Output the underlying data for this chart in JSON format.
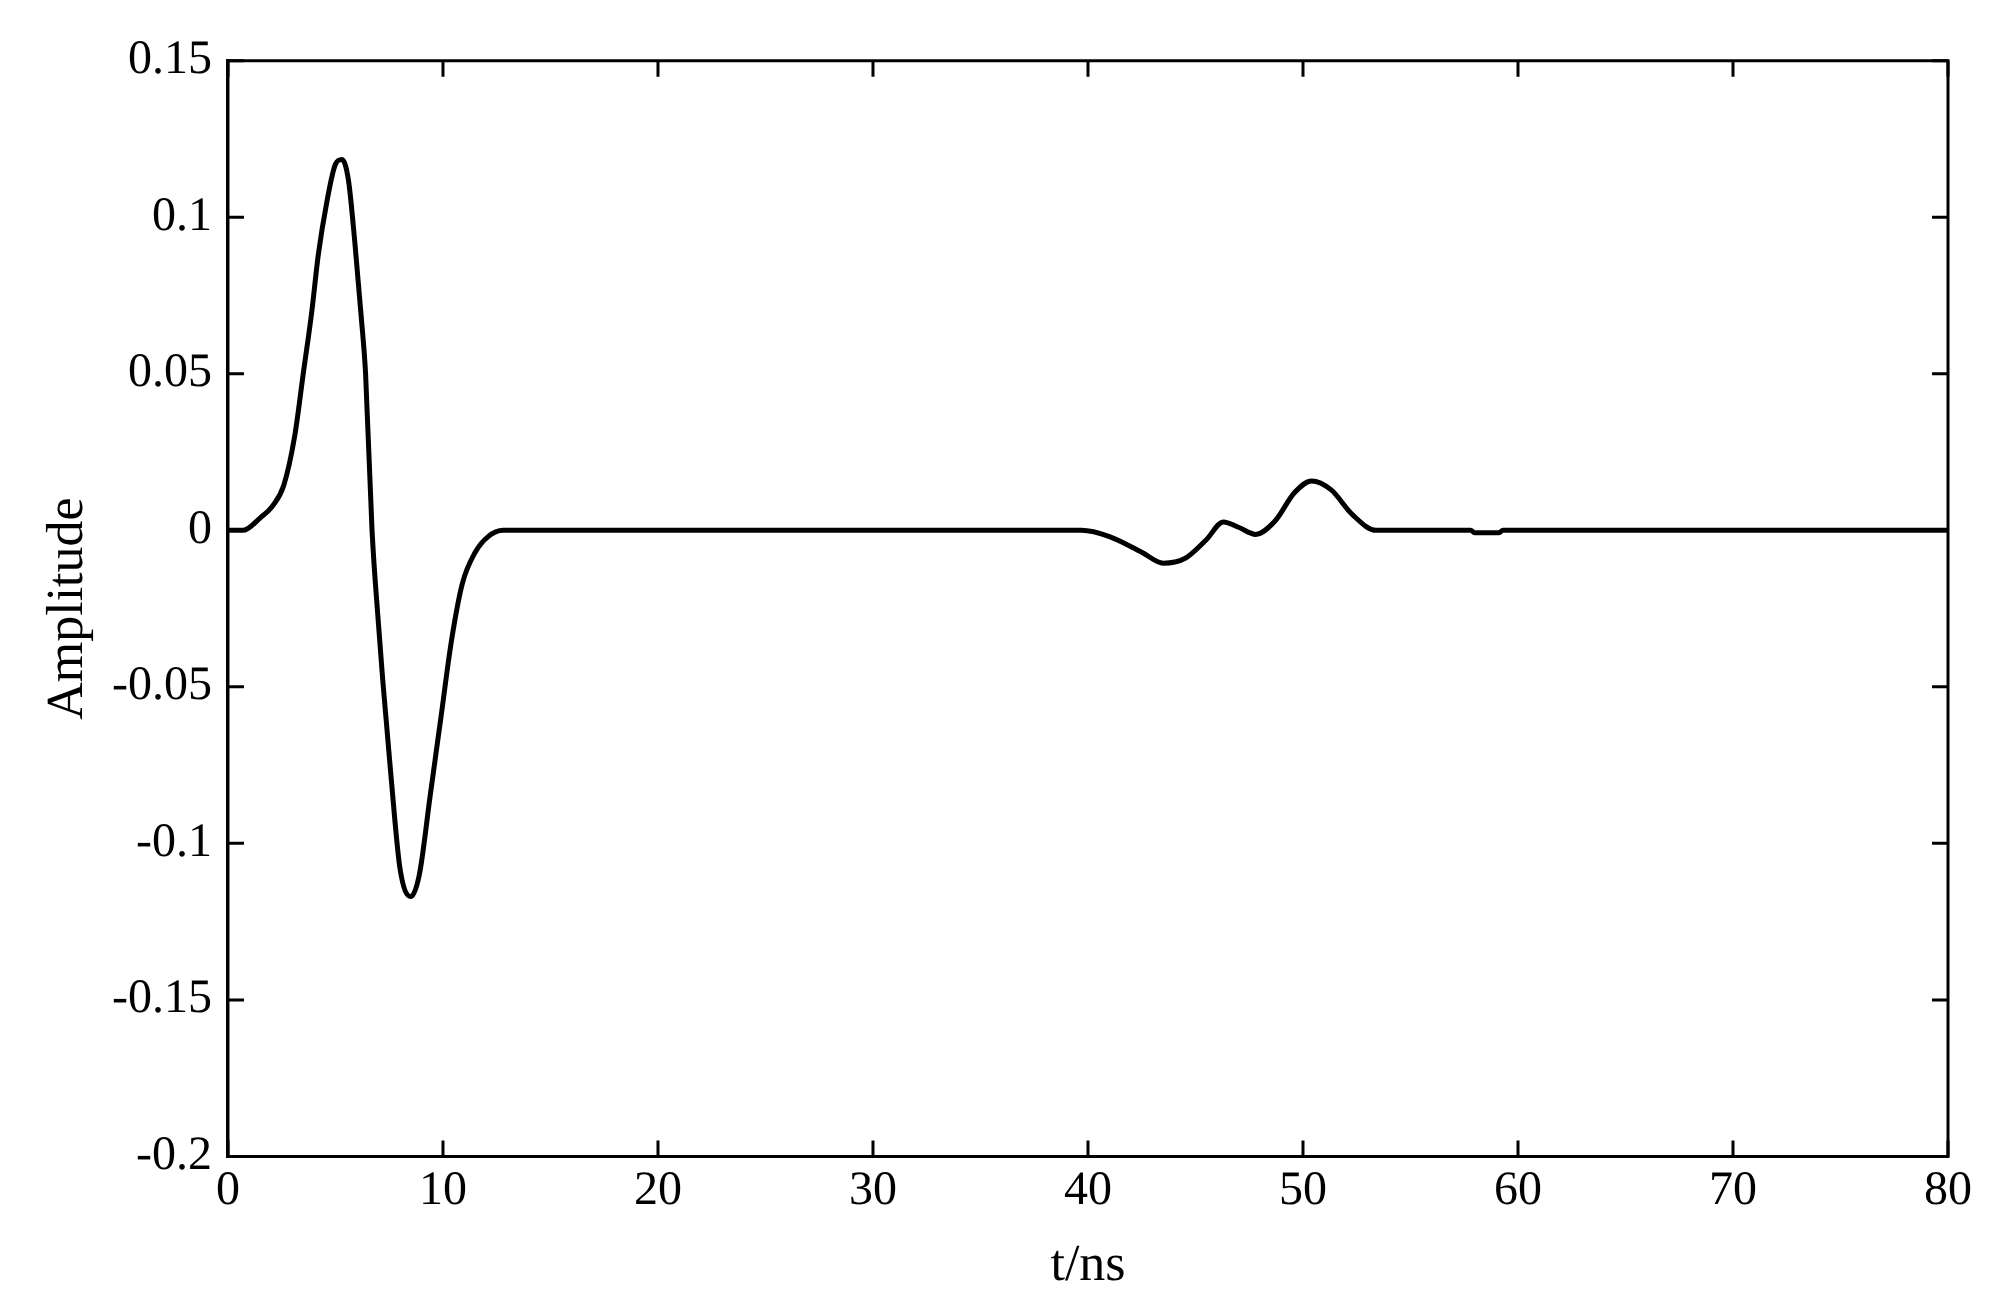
{
  "chart_data": {
    "type": "line",
    "xlabel": "t/ns",
    "ylabel": "Amplitude",
    "xlim": [
      0,
      80
    ],
    "ylim": [
      -0.2,
      0.15
    ],
    "xticks": [
      0,
      10,
      20,
      30,
      40,
      50,
      60,
      70,
      80
    ],
    "yticks": [
      -0.2,
      -0.15,
      -0.1,
      -0.05,
      0,
      0.05,
      0.1,
      0.15
    ],
    "grid": false,
    "legend": false,
    "marker": "none",
    "line_style": "solid",
    "series": [
      {
        "color": "#000000",
        "x": [
          0,
          0.7,
          1.5,
          2.1,
          2.6,
          3.1,
          3.5,
          3.9,
          4.2,
          4.6,
          5.0,
          5.3,
          5.6,
          5.9,
          6.2,
          6.4,
          6.7,
          7.0,
          7.2,
          7.6,
          8.0,
          8.5,
          8.9,
          9.4,
          9.9,
          10.4,
          10.9,
          11.5,
          12.1,
          12.8,
          20,
          30,
          39.7,
          41,
          42.5,
          43.5,
          44.5,
          45.5,
          46.3,
          47.0,
          47.8,
          48.7,
          49.6,
          50.4,
          51.3,
          52.3,
          53.4,
          57.8,
          58.0,
          59.1,
          59.3,
          70,
          80
        ],
        "values": [
          0,
          0,
          0.004,
          0.008,
          0.0145,
          0.03,
          0.05,
          0.07,
          0.088,
          0.105,
          0.117,
          0.1185,
          0.112,
          0.092,
          0.068,
          0.05,
          0,
          -0.03,
          -0.048,
          -0.08,
          -0.108,
          -0.117,
          -0.11,
          -0.085,
          -0.06,
          -0.035,
          -0.017,
          -0.007,
          -0.002,
          0,
          0,
          0,
          0,
          -0.002,
          -0.007,
          -0.0105,
          -0.009,
          -0.003,
          0.0027,
          0.001,
          -0.0013,
          0.003,
          0.012,
          0.0158,
          0.013,
          0.005,
          0,
          0,
          -0.0008,
          -0.0008,
          0,
          0,
          0
        ]
      }
    ]
  }
}
